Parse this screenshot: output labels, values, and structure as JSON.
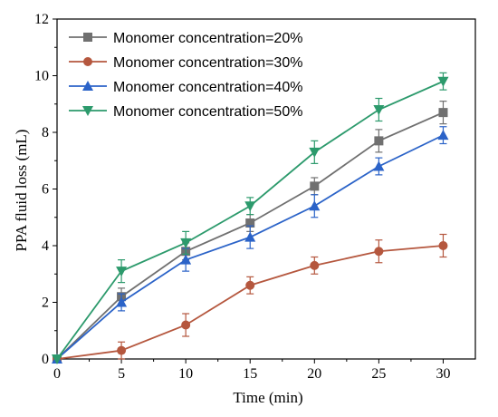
{
  "chart_data": {
    "type": "line",
    "xlabel": "Time (min)",
    "ylabel": "PPA fluid loss (mL)",
    "xlim": [
      0,
      32.5
    ],
    "ylim": [
      0,
      12
    ],
    "xticks": [
      0,
      5,
      10,
      15,
      20,
      25,
      30
    ],
    "yticks": [
      0,
      2,
      4,
      6,
      8,
      10,
      12
    ],
    "x": [
      0,
      5,
      10,
      15,
      20,
      25,
      30
    ],
    "grid": false,
    "legend_position": "top-left",
    "series": [
      {
        "name": "Monomer concentration=20%",
        "color": "#707070",
        "marker": "square",
        "values": [
          0,
          2.2,
          3.8,
          4.8,
          6.1,
          7.7,
          8.7
        ],
        "errors": [
          0,
          0.3,
          0.3,
          0.3,
          0.3,
          0.4,
          0.4
        ]
      },
      {
        "name": "Monomer concentration=30%",
        "color": "#b5573e",
        "marker": "circle",
        "values": [
          0,
          0.3,
          1.2,
          2.6,
          3.3,
          3.8,
          4.0
        ],
        "errors": [
          0,
          0.3,
          0.4,
          0.3,
          0.3,
          0.4,
          0.4
        ]
      },
      {
        "name": "Monomer concentration=40%",
        "color": "#2b63c8",
        "marker": "triangle-up",
        "values": [
          0,
          2.0,
          3.5,
          4.3,
          5.4,
          6.8,
          7.9
        ],
        "errors": [
          0,
          0.3,
          0.4,
          0.4,
          0.4,
          0.3,
          0.3
        ]
      },
      {
        "name": "Monomer concentration=50%",
        "color": "#2c9a6c",
        "marker": "triangle-down",
        "values": [
          0,
          3.1,
          4.1,
          5.4,
          7.3,
          8.8,
          9.8
        ],
        "errors": [
          0,
          0.4,
          0.4,
          0.3,
          0.4,
          0.4,
          0.3
        ]
      }
    ]
  }
}
